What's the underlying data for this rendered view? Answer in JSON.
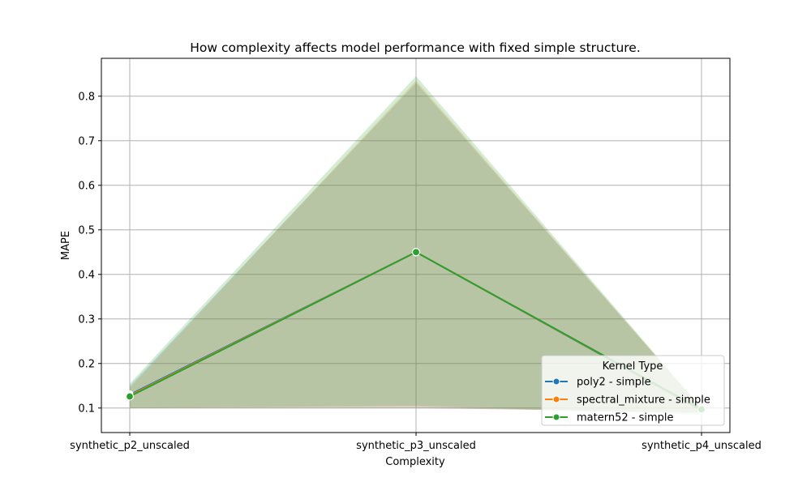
{
  "chart_data": {
    "type": "line",
    "title": "How complexity affects model performance with fixed simple structure.",
    "xlabel": "Complexity",
    "ylabel": "MAPE",
    "categories": [
      "synthetic_p2_unscaled",
      "synthetic_p3_unscaled",
      "synthetic_p4_unscaled"
    ],
    "ylim": [
      0.045,
      0.885
    ],
    "yticks": [
      "0.1",
      "0.2",
      "0.3",
      "0.4",
      "0.5",
      "0.6",
      "0.7",
      "0.8"
    ],
    "grid": true,
    "legend": {
      "title": "Kernel Type",
      "position": "lower-right"
    },
    "series": [
      {
        "name": "poly2 - simple",
        "color": "#1f77b4",
        "values": [
          0.13,
          0.45,
          0.095
        ],
        "ci_lower": [
          0.1,
          0.1,
          0.09
        ],
        "ci_upper": [
          0.15,
          0.83,
          0.1
        ]
      },
      {
        "name": "spectral_mixture - simple",
        "color": "#ff7f0e",
        "values": [
          0.128,
          0.45,
          0.096
        ],
        "ci_lower": [
          0.1,
          0.1,
          0.09
        ],
        "ci_upper": [
          0.145,
          0.835,
          0.1
        ]
      },
      {
        "name": "matern52 - simple",
        "color": "#2ca02c",
        "values": [
          0.126,
          0.45,
          0.097
        ],
        "ci_lower": [
          0.1,
          0.105,
          0.085
        ],
        "ci_upper": [
          0.155,
          0.845,
          0.1
        ]
      }
    ]
  }
}
